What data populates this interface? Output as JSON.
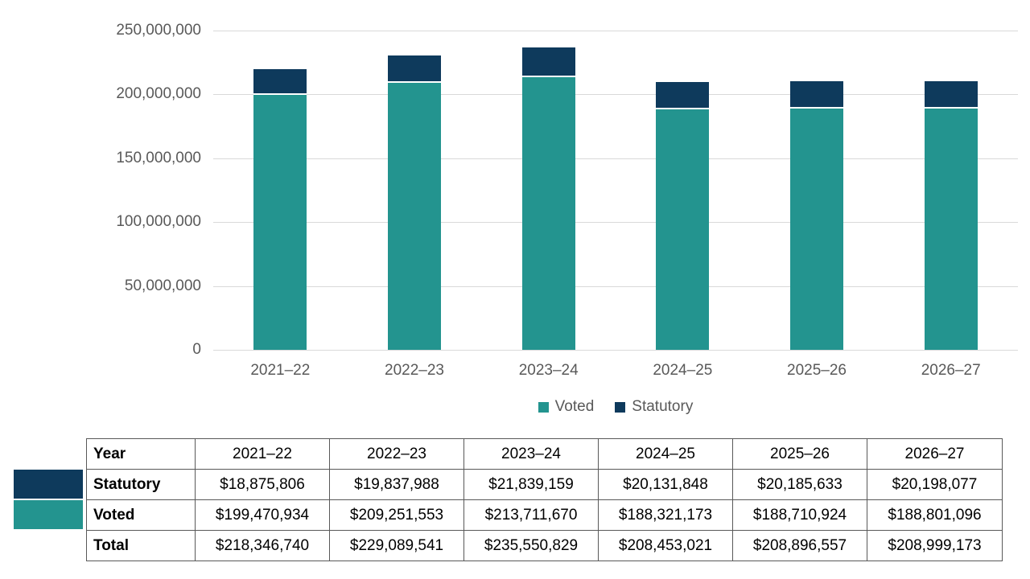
{
  "colors": {
    "voted": "#23948F",
    "statutory": "#0E3A5C",
    "gridline": "#D9D9D9",
    "axis_text": "#595959",
    "table_border": "#595959"
  },
  "chart_data": {
    "type": "bar",
    "stacked": true,
    "title": "",
    "xlabel": "",
    "ylabel": "",
    "ylim": [
      0,
      250000000
    ],
    "grid": "horizontal",
    "legend_position": "bottom-center",
    "categories": [
      "2021–22",
      "2022–23",
      "2023–24",
      "2024–25",
      "2025–26",
      "2026–27"
    ],
    "y_tick_labels": [
      "250,000,000",
      "200,000,000",
      "150,000,000",
      "100,000,000",
      "50,000,000",
      "0"
    ],
    "series": [
      {
        "name": "Voted",
        "color": "#23948F",
        "values": [
          199470934,
          209251553,
          213711670,
          188321173,
          188710924,
          188801096
        ]
      },
      {
        "name": "Statutory",
        "color": "#0E3A5C",
        "values": [
          18875806,
          19837988,
          21839159,
          20131848,
          20185633,
          20198077
        ]
      }
    ],
    "totals": [
      218346740,
      229089541,
      235550829,
      208453021,
      208896557,
      208999173
    ],
    "legend": [
      {
        "label": "Voted",
        "color": "#23948F"
      },
      {
        "label": "Statutory",
        "color": "#0E3A5C"
      }
    ]
  },
  "table": {
    "header": [
      "Year",
      "2021–22",
      "2022–23",
      "2023–24",
      "2024–25",
      "2025–26",
      "2026–27"
    ],
    "rows": [
      {
        "label": "Statutory",
        "swatch": "#0E3A5C",
        "values": [
          "$18,875,806",
          "$19,837,988",
          "$21,839,159",
          "$20,131,848",
          "$20,185,633",
          "$20,198,077"
        ]
      },
      {
        "label": "Voted",
        "swatch": "#23948F",
        "values": [
          "$199,470,934",
          "$209,251,553",
          "$213,711,670",
          "$188,321,173",
          "$188,710,924",
          "$188,801,096"
        ]
      },
      {
        "label": "Total",
        "swatch": null,
        "values": [
          "$218,346,740",
          "$229,089,541",
          "$235,550,829",
          "$208,453,021",
          "$208,896,557",
          "$208,999,173"
        ]
      }
    ]
  }
}
